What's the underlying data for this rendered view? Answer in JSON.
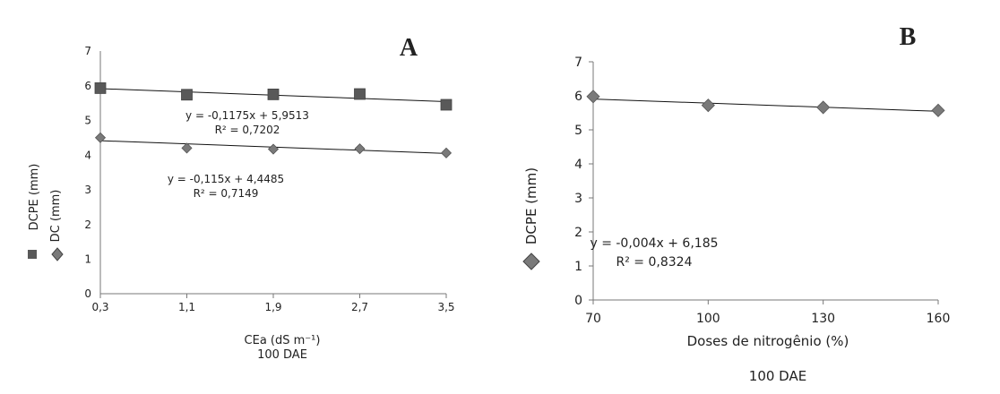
{
  "chart_data": [
    {
      "type": "scatter",
      "panel_letter": "A",
      "xlabel": "CEa (dS m⁻¹)",
      "caption": "100 DAE",
      "x_ticks": [
        "0,3",
        "1,1",
        "1,9",
        "2,7",
        "3,5"
      ],
      "x_values": [
        0.3,
        1.1,
        1.9,
        2.7,
        3.5
      ],
      "xlim": [
        0.3,
        3.5
      ],
      "ylim": [
        0,
        7
      ],
      "y_ticks": [
        "0",
        "1",
        "2",
        "3",
        "4",
        "5",
        "6",
        "7"
      ],
      "ylabel_series": [
        "DCPE (mm)",
        "DC  (mm)"
      ],
      "series": [
        {
          "name": "DCPE (mm)",
          "marker": "square",
          "color": "#595959",
          "values": [
            5.93,
            5.74,
            5.75,
            5.76,
            5.45
          ],
          "trendline": {
            "slope": -0.1175,
            "intercept": 5.9513
          },
          "equation": "y = -0,1175x + 5,9513",
          "r2": "R² = 0,7202"
        },
        {
          "name": "DC  (mm)",
          "marker": "diamond",
          "color": "#7a7a7a",
          "values": [
            4.5,
            4.2,
            4.17,
            4.18,
            4.06
          ],
          "trendline": {
            "slope": -0.115,
            "intercept": 4.4485
          },
          "equation": "y = -0,115x + 4,4485",
          "r2": "R² = 0,7149"
        }
      ],
      "grid": false
    },
    {
      "type": "scatter",
      "panel_letter": "B",
      "xlabel": "Doses de nitrogênio (%)",
      "caption": "100 DAE",
      "x_ticks": [
        "70",
        "100",
        "130",
        "160"
      ],
      "x_values": [
        70,
        100,
        130,
        160
      ],
      "xlim": [
        70,
        160
      ],
      "ylim": [
        0,
        7
      ],
      "y_ticks": [
        "0",
        "1",
        "2",
        "3",
        "4",
        "5",
        "6",
        "7"
      ],
      "ylabel_series": [
        "DCPE  (mm)"
      ],
      "series": [
        {
          "name": "DCPE  (mm)",
          "marker": "diamond",
          "color": "#7a7a7a",
          "values": [
            5.98,
            5.72,
            5.66,
            5.57
          ],
          "trendline": {
            "slope": -0.004,
            "intercept": 6.185
          },
          "equation": "y = -0,004x + 6,185",
          "r2": "R² = 0,8324"
        }
      ],
      "grid": false
    }
  ]
}
